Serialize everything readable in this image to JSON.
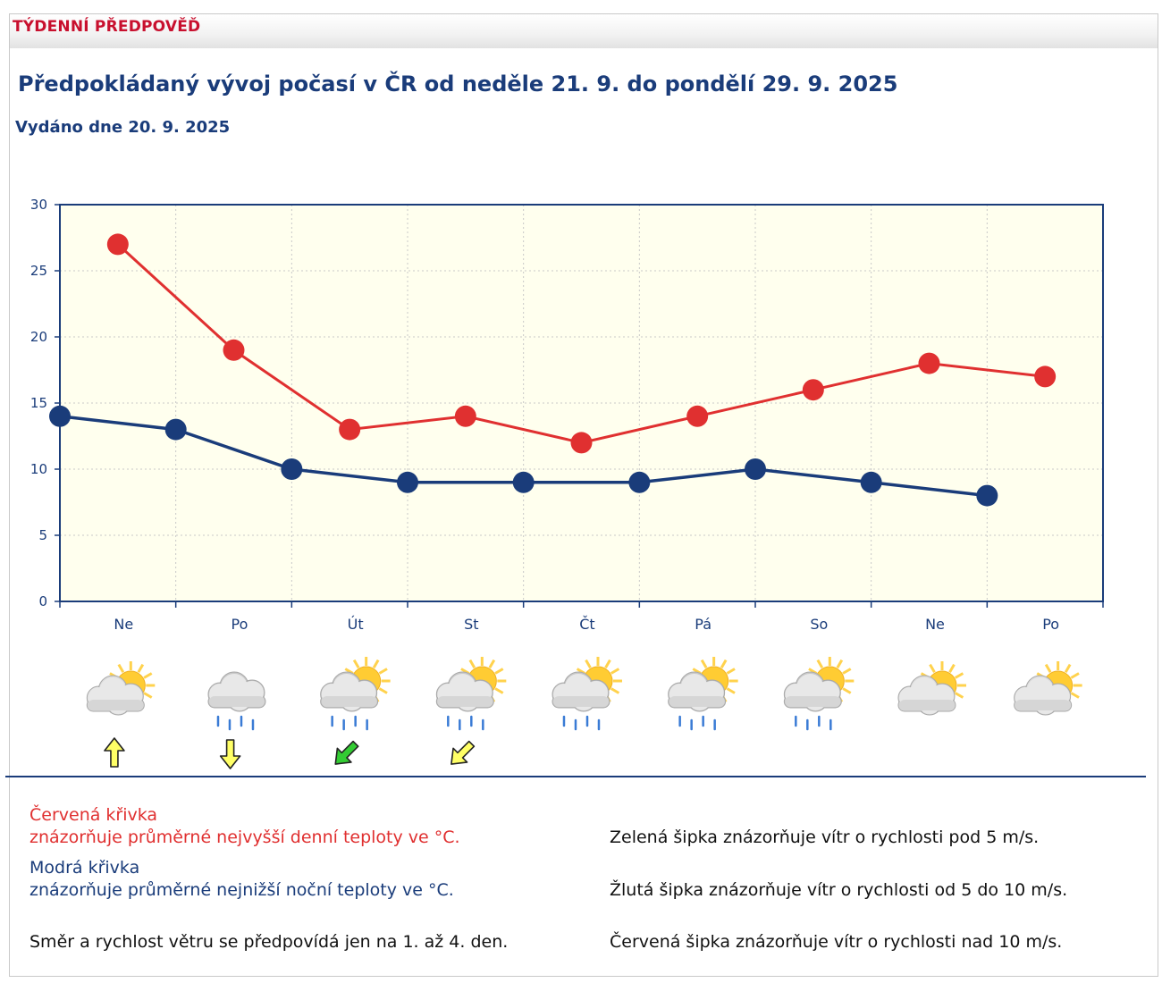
{
  "header": {
    "section_title": "TÝDENNÍ PŘEDPOVĚĎ"
  },
  "headline": "Předpokládaný vývoj počasí v ČR od neděle 21. 9. do pondělí 29. 9. 2025",
  "issued": "Vydáno dne 20. 9. 2025",
  "colors": {
    "max_line": "#e03030",
    "min_line": "#1a3c7a",
    "plot_bg": "#ffffee",
    "axis": "#1a3c7a",
    "wind_yellow": "#ffff66",
    "wind_green": "#33cc33"
  },
  "chart_data": {
    "type": "line",
    "title": "",
    "xlabel": "",
    "ylabel": "",
    "ylim": [
      0,
      30
    ],
    "yticks": [
      "0",
      "5",
      "10",
      "15",
      "20",
      "25",
      "30"
    ],
    "categories": [
      "Ne",
      "Po",
      "Út",
      "St",
      "Čt",
      "Pá",
      "So",
      "Ne",
      "Po"
    ],
    "grid": true,
    "series": [
      {
        "name": "Červená křivka",
        "color": "#e03030",
        "values": [
          27,
          19,
          13,
          14,
          12,
          14,
          16,
          18,
          17
        ]
      },
      {
        "name": "Modrá křivka",
        "color": "#1a3c7a",
        "values": [
          14,
          13,
          10,
          9,
          9,
          9,
          10,
          9,
          8
        ]
      }
    ]
  },
  "weather_icons": [
    "sun-behind-cloud-icon",
    "rain-cloud-icon",
    "sun-cloud-rain-icon",
    "sun-cloud-rain-icon",
    "sun-cloud-rain-icon",
    "sun-cloud-rain-icon",
    "sun-cloud-rain-icon",
    "sun-behind-cloud-icon",
    "sun-behind-cloud-icon"
  ],
  "wind_arrows": [
    {
      "day": 0,
      "color": "yellow",
      "direction": "up"
    },
    {
      "day": 1,
      "color": "yellow",
      "direction": "down"
    },
    {
      "day": 2,
      "color": "green",
      "direction": "down-left"
    },
    {
      "day": 3,
      "color": "yellow",
      "direction": "down-left"
    }
  ],
  "legend": {
    "red_title": "Červená křivka",
    "red_desc": "znázorňuje průměrné nejvyšší denní teploty ve °C.",
    "blue_title": "Modrá křivka",
    "blue_desc": "znázorňuje průměrné nejnižší noční teploty ve °C.",
    "wind_note": "Směr a rychlost větru se předpovídá jen na 1. až 4. den.",
    "green_arrow": "Zelená šipka znázorňuje vítr o rychlosti pod 5 m/s.",
    "yellow_arrow": "Žlutá šipka znázorňuje vítr o rychlosti od 5 do 10 m/s.",
    "red_arrow": "Červená šipka znázorňuje vítr o rychlosti nad 10 m/s."
  }
}
